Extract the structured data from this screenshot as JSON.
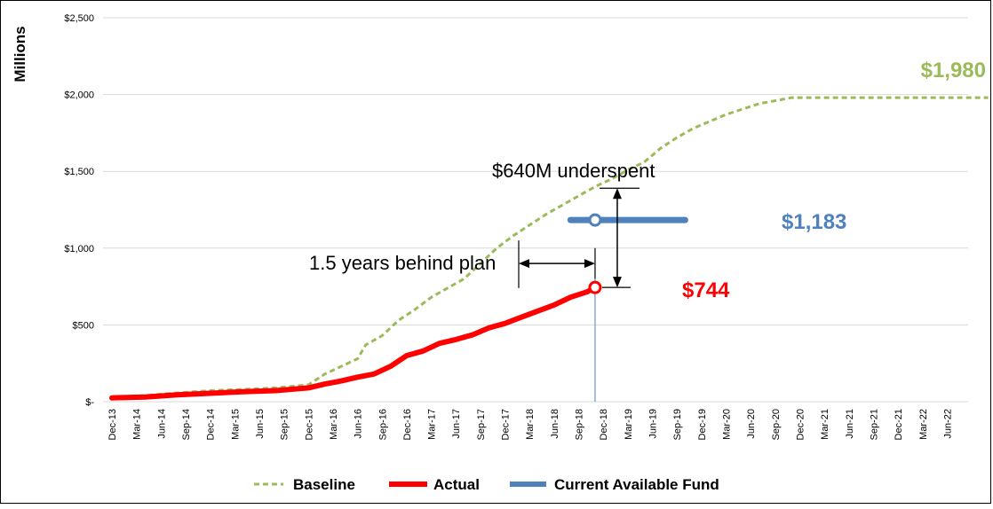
{
  "chart_data": {
    "type": "line",
    "ylabel": "Millions",
    "ylim": [
      0,
      2500
    ],
    "ytick_values": [
      0,
      500,
      1000,
      1500,
      2000,
      2500
    ],
    "ytick_labels": [
      "$-",
      "$500",
      "$1,000",
      "$1,500",
      "$2,000",
      "$2,500"
    ],
    "x_tick_labels": [
      "Dec-13",
      "Mar-14",
      "Jun-14",
      "Sep-14",
      "Dec-14",
      "Mar-15",
      "Jun-15",
      "Sep-15",
      "Dec-15",
      "Mar-16",
      "Jun-16",
      "Sep-16",
      "Dec-16",
      "Mar-17",
      "Jun-17",
      "Sep-17",
      "Dec-17",
      "Mar-18",
      "Jun-18",
      "Sep-18",
      "Dec-18",
      "Mar-19",
      "Jun-19",
      "Sep-19",
      "Dec-19",
      "Mar-20",
      "Jun-20",
      "Sep-20",
      "Dec-20",
      "Mar-21",
      "Jun-21",
      "Sep-21",
      "Dec-21",
      "Mar-22",
      "Jun-22"
    ],
    "series": [
      {
        "name": "Baseline",
        "color": "#9bbb59",
        "style": "dashed",
        "points": [
          [
            0,
            30
          ],
          [
            4,
            40
          ],
          [
            8,
            58
          ],
          [
            12,
            72
          ],
          [
            16,
            80
          ],
          [
            20,
            90
          ],
          [
            24,
            110
          ],
          [
            26,
            180
          ],
          [
            28,
            230
          ],
          [
            30,
            280
          ],
          [
            31,
            370
          ],
          [
            33,
            430
          ],
          [
            35,
            530
          ],
          [
            37,
            600
          ],
          [
            39,
            680
          ],
          [
            41,
            740
          ],
          [
            43,
            800
          ],
          [
            45,
            900
          ],
          [
            47,
            1000
          ],
          [
            49,
            1080
          ],
          [
            51,
            1150
          ],
          [
            53,
            1220
          ],
          [
            55,
            1280
          ],
          [
            57,
            1340
          ],
          [
            59,
            1400
          ],
          [
            61,
            1450
          ],
          [
            63,
            1510
          ],
          [
            65,
            1560
          ],
          [
            67,
            1650
          ],
          [
            69,
            1720
          ],
          [
            71,
            1780
          ],
          [
            75,
            1870
          ],
          [
            79,
            1940
          ],
          [
            83,
            1980
          ],
          [
            107,
            1980
          ]
        ]
      },
      {
        "name": "Actual",
        "color": "#ff0000",
        "style": "solid",
        "points": [
          [
            0,
            25
          ],
          [
            4,
            30
          ],
          [
            8,
            45
          ],
          [
            12,
            55
          ],
          [
            16,
            65
          ],
          [
            20,
            72
          ],
          [
            24,
            90
          ],
          [
            26,
            115
          ],
          [
            28,
            135
          ],
          [
            30,
            160
          ],
          [
            32,
            180
          ],
          [
            34,
            230
          ],
          [
            36,
            300
          ],
          [
            38,
            330
          ],
          [
            40,
            380
          ],
          [
            42,
            405
          ],
          [
            44,
            435
          ],
          [
            46,
            480
          ],
          [
            48,
            510
          ],
          [
            50,
            550
          ],
          [
            52,
            590
          ],
          [
            54,
            630
          ],
          [
            56,
            680
          ],
          [
            58,
            715
          ],
          [
            59,
            744
          ]
        ]
      },
      {
        "name": "Current Available Fund",
        "color": "#4f81bd",
        "style": "solid",
        "points": [
          [
            56,
            1183
          ],
          [
            70,
            1183
          ]
        ]
      }
    ],
    "annotations": {
      "baseline_end": "$1,980",
      "fund_value": "$1,183",
      "actual_value": "$744",
      "underspent": "$640M underspent",
      "behind": "1.5 years behind plan"
    },
    "legend_position": "bottom"
  }
}
